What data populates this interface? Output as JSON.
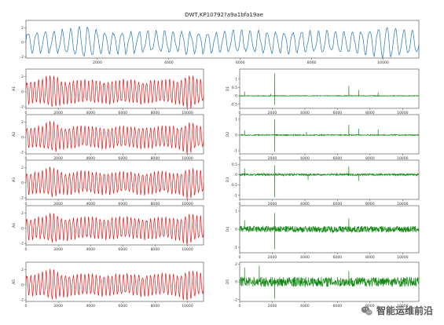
{
  "figure": {
    "title": "DWT,KP10792?a9a1bfa19ae",
    "watermark_text": "智能运维前沿",
    "watermark_icon": "wechat-icon",
    "colors": {
      "original": "#1f77b4",
      "approx": "#e41a1c",
      "detail": "#148a14"
    }
  },
  "chart_data": [
    {
      "id": "original",
      "type": "line",
      "title": "DWT,KP10792?a9a1bfa19ae",
      "ylabel": "",
      "xlim": [
        0,
        11000
      ],
      "ylim": [
        -2.2,
        3.0
      ],
      "xticks": [
        2000,
        4000,
        6000,
        8000,
        10000
      ],
      "yticks": [
        -2,
        0,
        2
      ],
      "series": [
        {
          "color": "#1f77b4",
          "cycles": 46,
          "amplitude": 1.4,
          "burst_at": [
            1600,
            10100
          ],
          "burst_gain": 0.6
        }
      ]
    },
    {
      "id": "A1",
      "type": "line",
      "ylabel": "A1",
      "xlim": [
        0,
        11000
      ],
      "ylim": [
        -2.2,
        3.0
      ],
      "xticks": [
        0,
        2000,
        4000,
        6000,
        8000,
        10000
      ],
      "yticks": [
        -2,
        0,
        2
      ],
      "series": [
        {
          "color": "#e41a1c",
          "cycles": 46,
          "amplitude": 1.4,
          "burst_at": [
            1600,
            10100
          ],
          "burst_gain": 0.7
        }
      ]
    },
    {
      "id": "A2",
      "type": "line",
      "ylabel": "A2",
      "xlim": [
        0,
        11000
      ],
      "ylim": [
        -2.2,
        3.0
      ],
      "xticks": [
        0,
        2000,
        4000,
        6000,
        8000,
        10000
      ],
      "yticks": [
        -2,
        0,
        2
      ],
      "series": [
        {
          "color": "#e41a1c",
          "cycles": 46,
          "amplitude": 1.3,
          "burst_at": [
            1600,
            10100
          ],
          "burst_gain": 0.6
        }
      ]
    },
    {
      "id": "A3",
      "type": "line",
      "ylabel": "A3",
      "xlim": [
        0,
        11000
      ],
      "ylim": [
        -2.2,
        3.0
      ],
      "xticks": [
        0,
        2000,
        4000,
        6000,
        8000,
        10000
      ],
      "yticks": [
        -2,
        0,
        2
      ],
      "series": [
        {
          "color": "#e41a1c",
          "cycles": 46,
          "amplitude": 1.3,
          "burst_at": [
            1600,
            10100
          ],
          "burst_gain": 0.6
        }
      ]
    },
    {
      "id": "A4",
      "type": "line",
      "ylabel": "A4",
      "xlim": [
        0,
        11000
      ],
      "ylim": [
        -2.2,
        3.0
      ],
      "xticks": [
        0,
        2000,
        4000,
        6000,
        8000,
        10000
      ],
      "yticks": [
        -2,
        0,
        2
      ],
      "series": [
        {
          "color": "#e41a1c",
          "cycles": 46,
          "amplitude": 1.3,
          "burst_at": [
            1600,
            10100
          ],
          "burst_gain": 0.6
        }
      ]
    },
    {
      "id": "A5",
      "type": "line",
      "ylabel": "A5",
      "xlim": [
        0,
        11000
      ],
      "ylim": [
        -2.2,
        3.0
      ],
      "xticks": [
        0,
        2000,
        4000,
        6000,
        8000,
        10000
      ],
      "yticks": [
        -2,
        0,
        2
      ],
      "series": [
        {
          "color": "#e41a1c",
          "cycles": 46,
          "amplitude": 1.3,
          "burst_at": [
            1600,
            10100
          ],
          "burst_gain": 0.6
        }
      ]
    },
    {
      "id": "D1",
      "type": "line",
      "ylabel": "D1",
      "xlim": [
        0,
        11000
      ],
      "ylim": [
        -0.75,
        1.6
      ],
      "xticks": [
        0,
        2000,
        4000,
        6000,
        8000,
        10000
      ],
      "yticks": [
        -0.5,
        0,
        0.5,
        1
      ],
      "series": [
        {
          "color": "#148a14",
          "noise": 0.02,
          "spikes": [
            [
              2150,
              1.35
            ],
            [
              2150,
              -0.55
            ],
            [
              6700,
              0.6
            ],
            [
              7300,
              0.35
            ],
            [
              300,
              0.25
            ],
            [
              8500,
              0.2
            ],
            [
              1900,
              0.12
            ]
          ]
        }
      ]
    },
    {
      "id": "D2",
      "type": "line",
      "ylabel": "D2",
      "xlim": [
        0,
        11000
      ],
      "ylim": [
        -1.2,
        1.3
      ],
      "xticks": [
        0,
        2000,
        4000,
        6000,
        8000,
        10000
      ],
      "yticks": [
        -1,
        0,
        1
      ],
      "series": [
        {
          "color": "#148a14",
          "noise": 0.03,
          "spikes": [
            [
              2150,
              1.0
            ],
            [
              2150,
              -1.05
            ],
            [
              6700,
              0.65
            ],
            [
              7300,
              0.4
            ],
            [
              300,
              0.3
            ],
            [
              8500,
              0.35
            ],
            [
              4100,
              0.2
            ]
          ]
        }
      ]
    },
    {
      "id": "D3",
      "type": "line",
      "ylabel": "D3",
      "xlim": [
        0,
        11000
      ],
      "ylim": [
        -1.2,
        0.7
      ],
      "xticks": [
        0,
        2000,
        4000,
        6000,
        8000,
        10000
      ],
      "yticks": [
        -1,
        -0.5,
        0,
        0.5
      ],
      "series": [
        {
          "color": "#148a14",
          "noise": 0.05,
          "spikes": [
            [
              2150,
              -1.1
            ],
            [
              2150,
              0.45
            ],
            [
              6700,
              0.4
            ],
            [
              7300,
              -0.3
            ],
            [
              300,
              0.3
            ],
            [
              4200,
              -0.25
            ]
          ]
        }
      ]
    },
    {
      "id": "D4",
      "type": "line",
      "ylabel": "D4",
      "xlim": [
        0,
        11000
      ],
      "ylim": [
        -1.3,
        1.3
      ],
      "xticks": [
        0,
        2000,
        4000,
        6000,
        8000,
        10000
      ],
      "yticks": [
        -1,
        0,
        1
      ],
      "series": [
        {
          "color": "#148a14",
          "noise": 0.18,
          "spikes": [
            [
              2150,
              -1.1
            ],
            [
              2150,
              0.9
            ],
            [
              6700,
              0.6
            ],
            [
              300,
              0.5
            ]
          ]
        }
      ]
    },
    {
      "id": "D5",
      "type": "line",
      "ylabel": "D5",
      "xlim": [
        0,
        11000
      ],
      "ylim": [
        -2.2,
        2.2
      ],
      "xticks": [
        0,
        2000,
        4000,
        6000,
        8000,
        10000
      ],
      "yticks": [
        -2,
        0,
        2
      ],
      "series": [
        {
          "color": "#148a14",
          "noise": 0.55,
          "spikes": [
            [
              2150,
              -1.9
            ],
            [
              300,
              1.6
            ],
            [
              1200,
              1.8
            ],
            [
              6700,
              1.2
            ]
          ]
        }
      ]
    }
  ]
}
